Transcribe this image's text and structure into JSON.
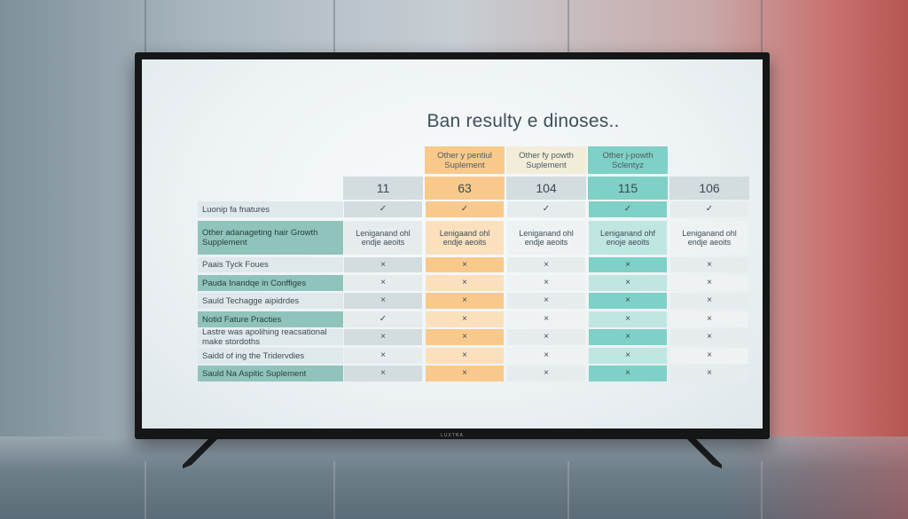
{
  "title": "Ban resulty e dinoses..",
  "brand": "LUXTRA",
  "column_headers": [
    "",
    "Other y pentiul Suplement",
    "Other fy powth Suplement",
    "Other j-powth Sclentyz",
    ""
  ],
  "column_numbers": [
    "11",
    "63",
    "104",
    "115",
    "106"
  ],
  "rows": [
    {
      "label": "Luonip fa fnatures",
      "cells": [
        "✓",
        "✓",
        "✓",
        "✓",
        "✓"
      ]
    },
    {
      "label": "Other adanageting hair Growth Supplement",
      "cells": [
        "Leniganand ohl endje aeoits",
        "Lenigaand ohl endje aeoits",
        "Leniganand ohl endje aeoits",
        "Leniganand ohf enoje aeoits",
        "Leniganand ohl endje aeoits"
      ]
    },
    {
      "label": "Paais Tyck Foues",
      "cells": [
        "×",
        "×",
        "×",
        "×",
        "×"
      ]
    },
    {
      "label": "Pauda Inandqe in Conffiges",
      "cells": [
        "×",
        "×",
        "×",
        "×",
        "×"
      ]
    },
    {
      "label": "Sauld Techagge aipidrdes",
      "cells": [
        "×",
        "×",
        "×",
        "×",
        "×"
      ]
    },
    {
      "label": "Notid Fature Practies",
      "cells": [
        "✓",
        "×",
        "×",
        "×",
        "×"
      ]
    },
    {
      "label": "Lastre was apolihing reacsational make stordoths",
      "cells": [
        "×",
        "×",
        "×",
        "×",
        "×"
      ]
    },
    {
      "label": "Saidd of ing the Tridervdies",
      "cells": [
        "×",
        "×",
        "×",
        "×",
        "×"
      ]
    },
    {
      "label": "Sauld Na Aspitic Suplement",
      "cells": [
        "×",
        "×",
        "×",
        "×",
        "×"
      ]
    }
  ],
  "colors": {
    "orange": "#f8c98b",
    "orange_light": "#fbe0bd",
    "teal": "#7fd0c6",
    "teal_light": "#bfe6e1",
    "grey": "#d3dcdf",
    "grey_light": "#e6ecee",
    "label_teal": "#8fc3bb",
    "label_light": "#dfe8ea",
    "cream": "#f2edd8"
  }
}
